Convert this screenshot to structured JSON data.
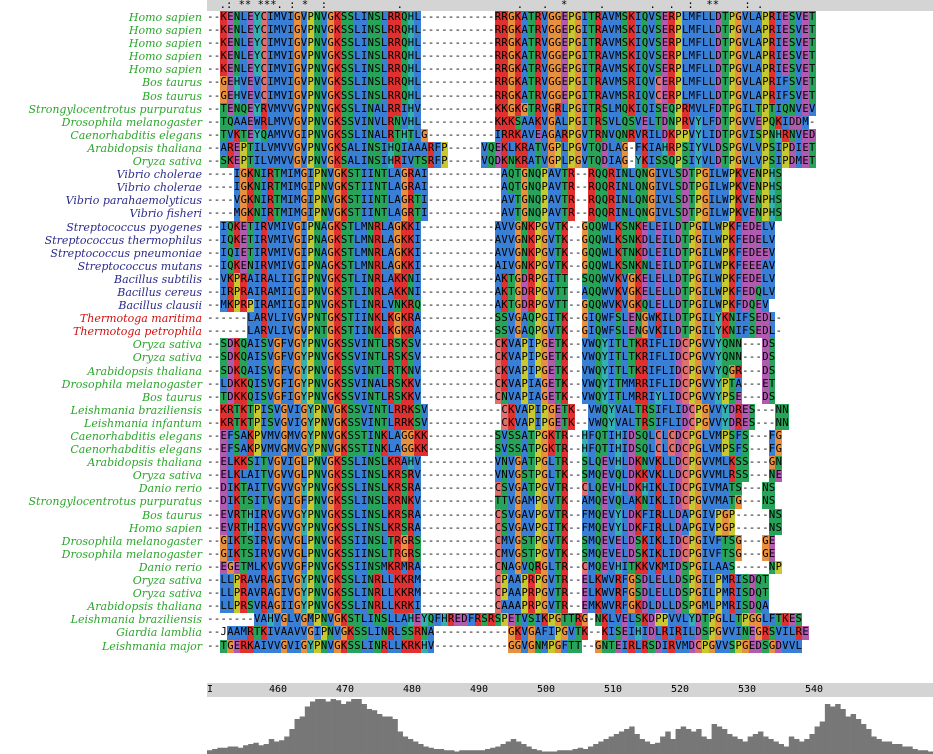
{
  "colors": {
    "hydrophobic": "#3a7fd6",
    "gly": "#e69040",
    "polar": "#27a35a",
    "pro": "#c8c830",
    "acidic": "#b05ab0",
    "basic": "#e03030",
    "cys": "#e07070",
    "aromatic": "#35b0b0",
    "name_green": "#2ba52b",
    "name_blue": "#2a2a8a",
    "name_red": "#cc1111"
  },
  "conservation": "  .: ** ***. : *  :           .                  .   .  *     .       .  .  :  **    : .",
  "sequences": [
    {
      "name": "Homo sapien",
      "group": "green",
      "seq": "--KENLEYCIMVIGVPNVGKSSLINSLRRQHL-----------RRGKATRVGGEPGITRAVMSKIQVSERPLMFLLDTPGVLAPRIESVET"
    },
    {
      "name": "Homo sapien",
      "group": "green",
      "seq": "--KENLEYCIMVIGVPNVGKSSLINSLRRQHL-----------RRGKATRVGGEPGITRAVMSKIQVSERPLMFLLDTPGVLAPRIESVET"
    },
    {
      "name": "Homo sapien",
      "group": "green",
      "seq": "--KENLEYCIMVIGVPNVGKSSLINSLRRQHL-----------RRGKATRVGGEPGITRAVMSKIQVSERPLMFLLDTPGVLAPRIESVET"
    },
    {
      "name": "Homo sapien",
      "group": "green",
      "seq": "--KENLEYCIMVIGVPNVGKSSLINSLRRQHL-----------RRGKATRVGGEPGITRAVMSKIQVSERPLMFLLDTPGVLAPRIESVET"
    },
    {
      "name": "Homo sapien",
      "group": "green",
      "seq": "--KENLEYCIMVIGVPNVGKSSLINSLRRQHL-----------RRGKATRVGGEPGITRAVMSKIQVSERPLMFLLDTPGVLAPRIESVET"
    },
    {
      "name": "Bos taurus",
      "group": "green",
      "seq": "--GEHVEVCIMVIGVPNVGKSSLINSLRRQHL-----------RRGKATRVGGEPGITRAVMSRIQVCERPLMFLLDTPGVLAPRIFSVET"
    },
    {
      "name": "Bos taurus",
      "group": "green",
      "seq": "--GEHVEVCIMVIGVPNVGKSSLINSLRRQHL-----------RRGKATRVGGEPGITRAVMSRIQVCERPLMFLLDTPGVLAPRIFSVET"
    },
    {
      "name": "Strongylocentrotus purpuratus",
      "group": "green",
      "seq": "--TENQEYRVMVVGVPNVGKSSLINALRRIHV-----------KKGKGTRVGRLPGITRSLMQKIQISEQPRMVLFDTPGILTPTIQNVEV"
    },
    {
      "name": "Drosophila melanogaster",
      "group": "green",
      "seq": "--TQAAEWRLMVVGVPNVGKSSVINVLRNVHL-----------KKKSAAKVGALPGITRSVLQSVELTDNPRVYLFDTPGVVEPQKIDDM-"
    },
    {
      "name": "Caenorhabditis elegans",
      "group": "green",
      "seq": "--TVKTEYQAMVVGIPNVGKSSLINALRTHTLG----------IRRKAVEAGARPGVTRNVQNRVRILDKPPVYLIDTPGVISPNHRNVED"
    },
    {
      "name": "Arabidopsis thaliana",
      "group": "green",
      "seq": "--AREPTILVMVVGVPNVGKSALINSIHQIAAARFP-----VQEKLKRATVGPLPGVTQDLAG-FKIAHRPSIYVLDSPGVLVPSIPDIET"
    },
    {
      "name": "Oryza sativa",
      "group": "green",
      "seq": "--SKEPTILVMVVGVPNVGKSALINSIHRIVTSRFP-----VQDKNKRATVGPLPGVTQDIAG-YKISSQPSIYVLDTPGVLVPSIPDMET"
    },
    {
      "name": "Vibrio cholerae",
      "group": "blue",
      "seq": "----IGKNIRTMIMGIPNVGKSTIINTLAGRAI-----------AQTGNQPAVTR--RQQRINLQNGIVLSDTPGILWPKVENPHS"
    },
    {
      "name": "Vibrio cholerae",
      "group": "blue",
      "seq": "----IGKNIRTMIMGIPNVGKSTIINTLAGRAI-----------AQTGNQPAVTR--RQQRINLQNGIVLSDTPGILWPKVENPHS"
    },
    {
      "name": "Vibrio parahaemolyticus",
      "group": "blue",
      "seq": "----VGKNIRTMIMGIPNVGKSTIINTLAGRTI-----------AVTGNQPAVTR--RQQRINLQNGIVLSDTPGILWPKVENPHS"
    },
    {
      "name": "Vibrio fisheri",
      "group": "blue",
      "seq": "----MGKNIRTMIMGIPNVGKSTIINTLAGRTI-----------AVTGNQPAVTR--RQQRINLQNGIVLSDTPGILWPKVENPHS"
    },
    {
      "name": "Streptococcus pyogenes",
      "group": "blue",
      "seq": "--IQKETIRVMIVGIPNAGKSTLMNRLAGKKI-----------AVVGNKPGVTK--GQQWLKSNKELEILDTPGILWPKFEDELV"
    },
    {
      "name": "Streptococcus thermophilus",
      "group": "blue",
      "seq": "--IQKETIRVMIVGIPNAGKSTLMNRLAGKKI-----------AVVGNKPGVTK--GQQWLKSNKDLEILDTPGILWPKFEDELV"
    },
    {
      "name": "Streptococcus pneumoniae",
      "group": "blue",
      "seq": "--IQIETIRVMIVGIPNAGKSTLMNRLAGKKI-----------AVVGNKPGVTK--GQQWLKTNKDLEILDTPGILWPKFEDEEV"
    },
    {
      "name": "Streptococcus mutans",
      "group": "blue",
      "seq": "--IQKENIRVMIVGIPNAGKSTLMNRLAGKKI-----------AIVGNKPGVTK--GQQWLKSNKNLEILDTPGILWPKFEEEAV"
    },
    {
      "name": "Bacillus subtilis",
      "group": "blue",
      "seq": "--VKPRAIRALIIGIPNVGKSTLINRLAKKNI-----------AKTGDRPGITT--SQQWVKVGKELELLDTPGILWPKFEDELV"
    },
    {
      "name": "Bacillus cereus",
      "group": "blue",
      "seq": "--IRPRAIRAMIIGIPNVGKSTLINRLAKKNI-----------AKTGDRPGVTT--AQQWVKVGKELELLDTPGILWPKFEDQLV"
    },
    {
      "name": "Bacillus clausii",
      "group": "blue",
      "seq": "--MKPRPIRAMIIGIPNVGKSTLINRLVNKRQ-----------AKTGDRPGVTT--GQQWVKVGKQLELLDTPGILWPKFDQEV"
    },
    {
      "name": "Thermotoga maritima",
      "group": "red",
      "seq": "------LARVLIVGVPNTGKSTIINKLKGKRA-----------SSVGAQPGITK--GIQWFSLENGWKILDTPGILYKNIFSEDL-"
    },
    {
      "name": "Thermotoga petrophila",
      "group": "red",
      "seq": "------LARVLIVGVPNTGKSTIINKLKGKRA-----------SSVGAQPGVTK--GIQWFSLENGVKILDTPGILYKNIFSEDL-"
    },
    {
      "name": "Oryza sativa",
      "group": "green",
      "seq": "--SDKQAISVGFVGYPNVGKSSVINTLRSKSV-----------CKVAPIPGETK--VWQYITLTKRIFLIDCPGVVYQNN---DS"
    },
    {
      "name": "Oryza sativa",
      "group": "green",
      "seq": "--SDKQAISVGFVGYPNVGKSSVINTLRSKSV-----------CKVAPIPGETK--VWQYITLTKRIFLIDCPGVVYQNN---DS"
    },
    {
      "name": "Arabidopsis thaliana",
      "group": "green",
      "seq": "--SDKQAISVGFVGYPNVGKSSVINTLRTKNV-----------CKVAPIPGETK--VWQYITLTKRIFLIDCPGVVYQGR---DS"
    },
    {
      "name": "Drosophila melanogaster",
      "group": "green",
      "seq": "--LDKKQISVGFIGYPNVGKSSVINALRSKKV-----------CKVAPIAGETK--VWQYITMMRRIFLIDCPGVVYPTA---ET"
    },
    {
      "name": "Bos taurus",
      "group": "green",
      "seq": "--TDKKQISVGFIGYPNVGKSSVINTLRSKKV-----------CNVAPIAGETK--VWQYITLMRRIYLIDCPGVVYPSE---DS"
    },
    {
      "name": "Leishmania braziliensis",
      "group": "green",
      "seq": "--KRTKTPISVGVIGYPNVGKSSVINTLRRKSV-----------CKVAPIPGETK--VWQYVALTRSIFLIDCPGVVYDRES---NN"
    },
    {
      "name": "Leishmania infantum",
      "group": "green",
      "seq": "--KRTKTPISVGVIGYPNVGKSSVINTLRRKSV-----------CKVAPIPGETK--VWQYVALTRSIFLIDCPGVVYDRES---NN"
    },
    {
      "name": "Caenorhabditis elegans",
      "group": "green",
      "seq": "--EFSAKPVMVGMVGYPNVGKSSTINKLAGGKK----------SVSSATPGKTR--HFQTIHIDSQLCLCDCPGLVMPSFS---FG"
    },
    {
      "name": "Caenorhabditis elegans",
      "group": "green",
      "seq": "--EFSAKPVMVGMVGYPNVGKSSTINKLAGGKK----------SVSSATPGKTR--HFQTIHIDSQLCLCDCPGLVMPSFS---FG"
    },
    {
      "name": "Arabidopsis thaliana",
      "group": "green",
      "seq": "--ELKKSITVGVIGLPNVGKSSLINSLKRAHV-----------VNVGATPGLTR--SLQEVHLDKNVKLLDCPGVVMLKSS---GN"
    },
    {
      "name": "Oryza sativa",
      "group": "green",
      "seq": "--ELKLAITVGVVGLPNVGKSSLINSLKRSRV-----------VNVGSTPGLTK--SMQEVQLDKKVKLLDCPGVVMLRSS---NE"
    },
    {
      "name": "Danio rerio",
      "group": "green",
      "seq": "--DIKTAITVGVVGYPNVGKSSLINSLKRSRA-----------CSVGATPGVTR--CLQEVHLDKHIKLIDCPGIVMATS---NS"
    },
    {
      "name": "Strongylocentrotus purpuratus",
      "group": "green",
      "seq": "--DIKTSITVGVIGFPNVGKSSLINSLKRNKV-----------TTVGAMPGVTK--AMQEVQLAKNIKLIDCPGVVMATG---NS"
    },
    {
      "name": "Bos taurus",
      "group": "green",
      "seq": "--EVRTHIRVGVVGYPNVGKSSLINSLKRSRA-----------CSVGAVPGVTR--FMQEVYLDKFIRLLDAPGIVPGP-----NS"
    },
    {
      "name": "Homo sapien",
      "group": "green",
      "seq": "--EVRTHIRVGVVGYPNVGKSSLINSLKRSRA-----------CSVGAVPGITK--FMQEVYLDKFIRLLDAPGIVPGP-----NS"
    },
    {
      "name": "Drosophila melanogaster",
      "group": "green",
      "seq": "--GIKTSIRVGVVGLPNVGKSSIINSLTRGRS-----------CMVGSTPGVTK--SMQEVELDSKIKLIDCPGIVFTSG---GE"
    },
    {
      "name": "Drosophila melanogaster",
      "group": "green",
      "seq": "--GIKTSIRVGVVGLPNVGKSSIINSLTRGRS-----------CMVGSTPGVTK--SMQEVELDSKIKLIDCPGIVFTSG---GE"
    },
    {
      "name": "Danio rerio",
      "group": "green",
      "seq": "--EGETMLKVGVVGFPNVGKSSIINSMKRMRA-----------CNAGVQRGLTR--CMQEVHITKKVKMIDSPGILAAS-----NP"
    },
    {
      "name": "Oryza sativa",
      "group": "green",
      "seq": "--LLPRAVRAGIVGYPNVGKSSLINRLLKKRM-----------CPAAPRPGVTR--ELKWVRFGSDLELLDSPGILPMRISDQT"
    },
    {
      "name": "Oryza sativa",
      "group": "green",
      "seq": "--LLPRAVRAGIVGYPNVGKSSLINRLLKKRM-----------CPAAPRPGVTR--ELKWVRFGSDLELLDSPGILPMRISDQT"
    },
    {
      "name": "Arabidopsis thaliana",
      "group": "green",
      "seq": "--LLPRSVRAGIIGYPNVGKSSLINRLLKRKI-----------CAAAPRPGVTR--EMKWVRFGKDLDLLDSPGMLPMRISDQA"
    },
    {
      "name": "Leishmania braziliensis",
      "group": "green",
      "seq": "-------VAHVGLVGMPNVGKSTLINSLLAHEYQFHREDFRSRSPETVSIKPGTTRG-NKLVELSKDPPVVLYDTPGLLTPGGLFTKES"
    },
    {
      "name": "Giardia lamblia",
      "group": "green",
      "seq": "--JAAMRTKIVAAVVGIPNVGKSSLINRLSSRNA-----------GKVGAFIPGVTK--KISEIHIDLRIRILDSPGVVINEGRSVILRE"
    },
    {
      "name": "Leishmania major",
      "group": "green",
      "seq": "--TGERKAIVVGVIGYPNVGKSSLINRLLKRKHV-----------GGVGNMPGFTT--GNTEIRLRSDIRVMDCPGVVSPGEDSGDVVL"
    }
  ],
  "ruler": {
    "start_label": "I",
    "ticks": [
      "460",
      "470",
      "480",
      "490",
      "500",
      "510",
      "520",
      "530",
      "540"
    ]
  },
  "histogram": [
    3,
    4,
    5,
    5,
    6,
    6,
    5,
    7,
    8,
    9,
    7,
    8,
    12,
    10,
    11,
    14,
    20,
    28,
    30,
    38,
    42,
    44,
    44,
    42,
    44,
    43,
    40,
    42,
    44,
    44,
    40,
    36,
    35,
    32,
    30,
    30,
    28,
    18,
    14,
    12,
    10,
    8,
    6,
    5,
    4,
    4,
    3,
    3,
    2,
    3,
    3,
    3,
    3,
    3,
    4,
    5,
    6,
    8,
    10,
    12,
    10,
    8,
    6,
    4,
    3,
    2,
    2,
    2,
    3,
    3,
    3,
    4,
    5,
    4,
    6,
    8,
    10,
    12,
    14,
    16,
    18,
    20,
    22,
    16,
    12,
    10,
    8,
    9,
    14,
    18,
    12,
    20,
    22,
    20,
    18,
    20,
    14,
    12,
    24,
    22,
    20,
    16,
    14,
    12,
    10,
    14,
    16,
    18,
    14,
    12,
    10,
    8,
    6,
    14,
    12,
    10,
    12,
    16,
    22,
    26,
    40,
    38,
    40,
    36,
    30,
    32,
    28,
    24,
    20,
    14,
    12,
    10,
    10,
    8,
    8,
    6,
    6,
    4,
    3,
    3,
    2
  ]
}
